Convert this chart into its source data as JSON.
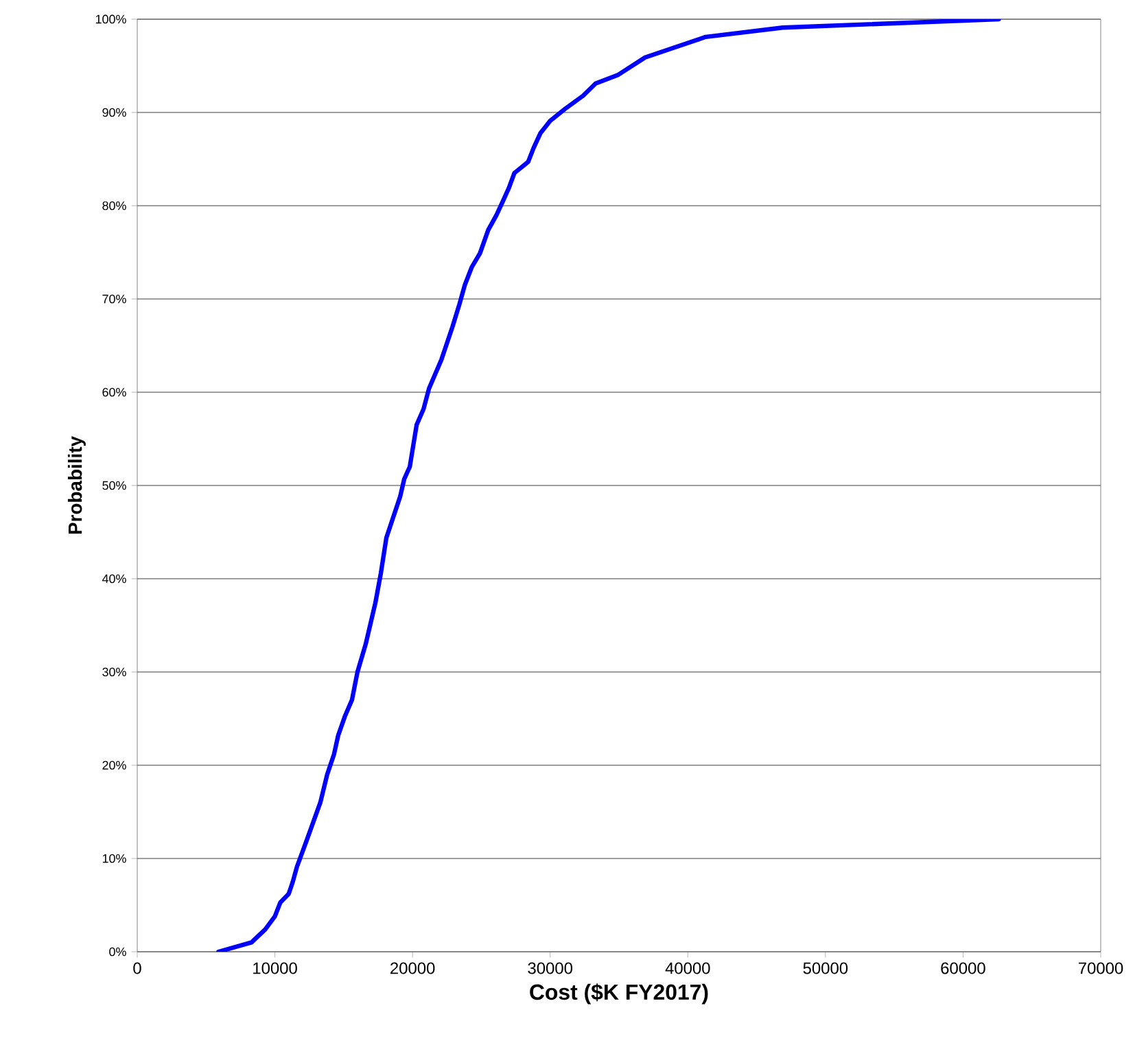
{
  "chart_data": {
    "type": "line",
    "xlabel": "Cost ($K FY2017)",
    "ylabel": "Probability",
    "x": [
      5900,
      8300,
      9300,
      10000,
      10400,
      11000,
      11300,
      11600,
      12300,
      13300,
      13800,
      14300,
      14600,
      15100,
      15600,
      16000,
      16600,
      17300,
      17700,
      18100,
      19100,
      19400,
      19800,
      20300,
      20800,
      21200,
      22100,
      22900,
      23400,
      23800,
      24300,
      24900,
      25500,
      26100,
      26600,
      27000,
      27400,
      28400,
      28800,
      29300,
      30000,
      31100,
      32400,
      33300,
      34900,
      36900,
      41300,
      46900,
      62600
    ],
    "series": [
      {
        "color": "#0000ff",
        "values": [
          0,
          1,
          2.4,
          3.8,
          5.3,
          6.2,
          7.5,
          9.1,
          11.9,
          16,
          19,
          21.2,
          23.2,
          25.3,
          27,
          30,
          33,
          37.4,
          40.6,
          44.4,
          48.8,
          50.7,
          52,
          56.5,
          58.2,
          60.4,
          63.5,
          67,
          69.4,
          71.5,
          73.4,
          74.9,
          77.4,
          79,
          80.6,
          81.9,
          83.5,
          84.7,
          86.2,
          87.8,
          89.1,
          90.4,
          91.8,
          93.1,
          94,
          95.9,
          98.1,
          99.1,
          100
        ]
      }
    ],
    "xlim": [
      0,
      70000
    ],
    "xticks": [
      0,
      10000,
      20000,
      30000,
      40000,
      50000,
      60000,
      70000
    ],
    "ylim": [
      0,
      100
    ],
    "yticks": [
      {
        "value": 0,
        "label": "0%"
      },
      {
        "value": 10,
        "label": "10%"
      },
      {
        "value": 20,
        "label": "20%"
      },
      {
        "value": 30,
        "label": "30%"
      },
      {
        "value": 40,
        "label": "40%"
      },
      {
        "value": 50,
        "label": "50%"
      },
      {
        "value": 60,
        "label": "60%"
      },
      {
        "value": 70,
        "label": "70%"
      },
      {
        "value": 80,
        "label": "80%"
      },
      {
        "value": 90,
        "label": "90%"
      },
      {
        "value": 100,
        "label": "100%"
      }
    ],
    "grid": "y",
    "marker": "none",
    "line_style": "solid"
  }
}
